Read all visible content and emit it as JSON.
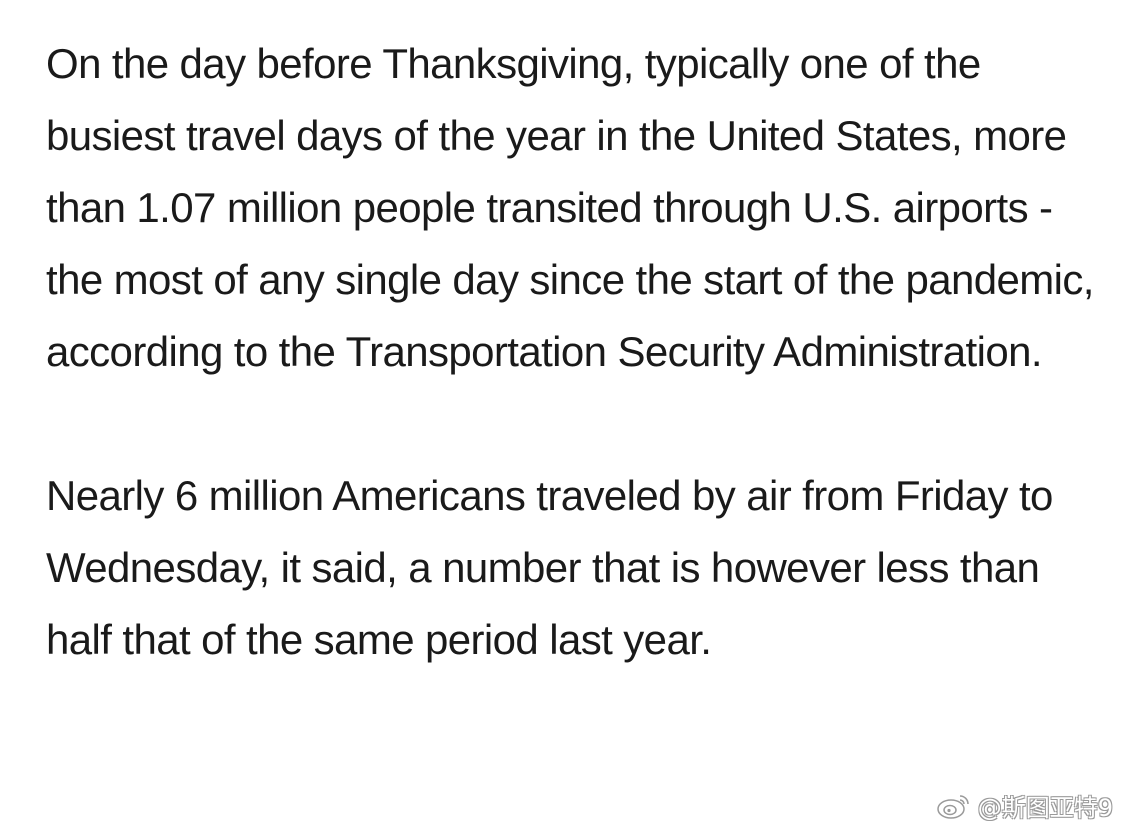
{
  "article": {
    "paragraphs": [
      "On the day before Thanksgiving, typically one of the busiest travel days of the year in the United States, more than 1.07 million people transited through U.S. airports - the most of any single day since the start of the pandemic, according to the Transportation Security Administration.",
      "Nearly 6 million Americans traveled by air from Friday to Wednesday, it said, a number that is however less than half that of the same period last year."
    ]
  },
  "watermark": {
    "icon": "weibo-logo-icon",
    "handle": "@斯图亚特9"
  }
}
